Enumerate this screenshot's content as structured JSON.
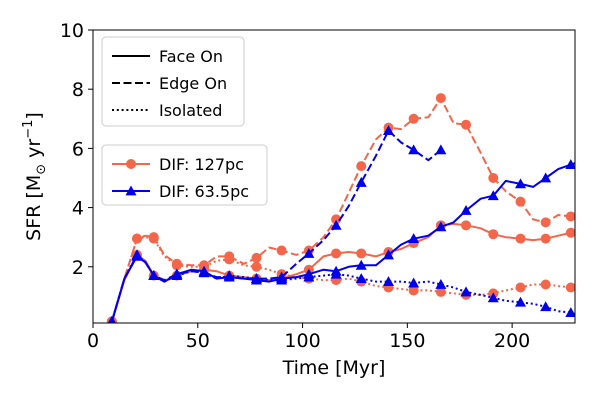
{
  "chart_data": {
    "type": "line",
    "title": "",
    "xlabel": "Time [Myr]",
    "ylabel_prefix": "SFR [M",
    "ylabel_sub": "⊙",
    "ylabel_mid": " yr",
    "ylabel_sup": "−1",
    "ylabel_suffix": "]",
    "xlim": [
      0,
      230
    ],
    "ylim": [
      0.1,
      10
    ],
    "xticks": [
      0,
      50,
      100,
      150,
      200
    ],
    "yticks": [
      2,
      4,
      6,
      8,
      10
    ],
    "grid": false,
    "style_legend": {
      "position": "top-left",
      "entries": [
        {
          "label": "Face On",
          "dash": "solid"
        },
        {
          "label": "Edge On",
          "dash": "dashed"
        },
        {
          "label": "Isolated",
          "dash": "dotted"
        }
      ]
    },
    "series_legend": {
      "position": "center-left",
      "entries": [
        {
          "label": "DIF: 127pc",
          "color": "#f4664a",
          "marker": "circle"
        },
        {
          "label": "DIF: 63.5pc",
          "color": "#0000ee",
          "marker": "triangle"
        }
      ]
    },
    "series": [
      {
        "name": "DIF: 127pc Face On",
        "color": "#f4664a",
        "dash": "solid",
        "marker": "circle",
        "x": [
          9,
          15,
          21,
          25,
          29,
          34,
          40,
          47,
          53,
          59,
          65,
          72,
          78,
          84,
          90,
          97,
          103,
          110,
          116,
          122,
          128,
          135,
          141,
          147,
          153,
          160,
          166,
          172,
          178,
          185,
          191,
          197,
          204,
          210,
          216,
          222,
          228,
          230
        ],
        "y": [
          0.15,
          1.55,
          2.4,
          2.2,
          1.7,
          1.5,
          1.7,
          1.85,
          1.9,
          1.85,
          1.7,
          1.65,
          1.6,
          1.55,
          1.6,
          1.75,
          1.9,
          2.35,
          2.45,
          2.5,
          2.45,
          2.35,
          2.5,
          2.6,
          2.8,
          3.0,
          3.4,
          3.45,
          3.4,
          3.3,
          3.1,
          3.0,
          2.95,
          2.9,
          2.95,
          3.05,
          3.15,
          3.2
        ]
      },
      {
        "name": "DIF: 127pc Edge On",
        "color": "#f4664a",
        "dash": "dashed",
        "marker": "circle",
        "x": [
          9,
          15,
          21,
          25,
          29,
          34,
          40,
          47,
          53,
          59,
          65,
          72,
          78,
          84,
          90,
          97,
          103,
          110,
          116,
          122,
          128,
          135,
          141,
          147,
          153,
          160,
          166,
          172,
          178,
          185,
          191,
          197,
          204,
          210,
          216,
          222,
          228,
          230
        ],
        "y": [
          0.15,
          1.6,
          2.95,
          3.05,
          3.0,
          2.4,
          2.1,
          2.05,
          2.05,
          2.35,
          2.35,
          2.1,
          2.3,
          2.65,
          2.55,
          2.4,
          2.55,
          3.0,
          3.6,
          4.5,
          5.4,
          6.3,
          6.7,
          6.65,
          7.0,
          7.05,
          7.7,
          6.85,
          6.8,
          5.85,
          5.0,
          4.55,
          4.2,
          3.6,
          3.5,
          3.75,
          3.7,
          3.65
        ]
      },
      {
        "name": "DIF: 127pc Isolated",
        "color": "#f4664a",
        "dash": "dotted",
        "marker": "circle",
        "x": [
          9,
          15,
          21,
          25,
          29,
          34,
          40,
          47,
          53,
          59,
          65,
          72,
          78,
          84,
          90,
          97,
          103,
          110,
          116,
          122,
          128,
          135,
          141,
          147,
          153,
          160,
          166,
          172,
          178,
          185,
          191,
          197,
          204,
          210,
          216,
          222,
          228,
          230
        ],
        "y": [
          0.15,
          1.6,
          2.95,
          3.0,
          2.95,
          2.35,
          2.05,
          2.0,
          2.0,
          2.2,
          2.25,
          2.05,
          2.0,
          1.9,
          1.75,
          1.65,
          1.6,
          1.55,
          1.55,
          1.6,
          1.5,
          1.35,
          1.3,
          1.25,
          1.2,
          1.2,
          1.15,
          1.1,
          1.05,
          1.05,
          1.1,
          1.2,
          1.3,
          1.4,
          1.4,
          1.35,
          1.3,
          1.3
        ]
      },
      {
        "name": "DIF: 63.5pc Face On",
        "color": "#0000ee",
        "dash": "solid",
        "marker": "triangle",
        "x": [
          9,
          15,
          21,
          25,
          29,
          34,
          40,
          47,
          53,
          59,
          65,
          72,
          78,
          84,
          90,
          97,
          103,
          110,
          116,
          122,
          128,
          135,
          141,
          147,
          153,
          160,
          166,
          172,
          178,
          185,
          191,
          197,
          204,
          210,
          216,
          222,
          228,
          230
        ],
        "y": [
          0.15,
          1.6,
          2.35,
          2.15,
          1.7,
          1.5,
          1.75,
          1.9,
          1.85,
          1.6,
          1.65,
          1.6,
          1.55,
          1.5,
          1.6,
          1.65,
          1.75,
          1.9,
          1.85,
          2.0,
          2.05,
          2.05,
          2.4,
          2.75,
          2.95,
          3.05,
          3.35,
          3.5,
          3.9,
          4.3,
          4.4,
          4.9,
          4.8,
          4.7,
          5.0,
          5.3,
          5.45,
          5.5
        ]
      },
      {
        "name": "DIF: 63.5pc Edge On",
        "color": "#0000ee",
        "dash": "dashed",
        "marker": "triangle",
        "x": [
          9,
          15,
          21,
          25,
          29,
          34,
          40,
          47,
          53,
          59,
          65,
          72,
          78,
          84,
          90,
          97,
          103,
          110,
          116,
          122,
          128,
          135,
          141,
          147,
          153,
          160,
          166
        ],
        "y": [
          0.15,
          1.6,
          2.4,
          2.15,
          1.7,
          1.55,
          1.75,
          1.85,
          1.8,
          1.65,
          1.65,
          1.6,
          1.6,
          1.6,
          1.65,
          2.1,
          2.45,
          2.9,
          3.4,
          4.05,
          4.85,
          5.75,
          6.6,
          6.2,
          5.95,
          5.6,
          5.95
        ]
      },
      {
        "name": "DIF: 63.5pc Isolated",
        "color": "#0000ee",
        "dash": "dotted",
        "marker": "triangle",
        "x": [
          9,
          15,
          21,
          25,
          29,
          34,
          40,
          47,
          53,
          59,
          65,
          72,
          78,
          84,
          90,
          97,
          103,
          110,
          116,
          122,
          128,
          135,
          141,
          147,
          153,
          160,
          166,
          172,
          178,
          185,
          191,
          197,
          204,
          210,
          216,
          222,
          228,
          230
        ],
        "y": [
          0.15,
          1.6,
          2.4,
          2.15,
          1.7,
          1.5,
          1.7,
          1.85,
          1.8,
          1.6,
          1.7,
          1.65,
          1.6,
          1.55,
          1.55,
          1.6,
          1.65,
          1.7,
          1.75,
          1.7,
          1.6,
          1.5,
          1.5,
          1.5,
          1.45,
          1.5,
          1.4,
          1.3,
          1.15,
          1.05,
          0.95,
          0.85,
          0.8,
          0.75,
          0.65,
          0.5,
          0.45,
          0.4
        ]
      }
    ]
  }
}
